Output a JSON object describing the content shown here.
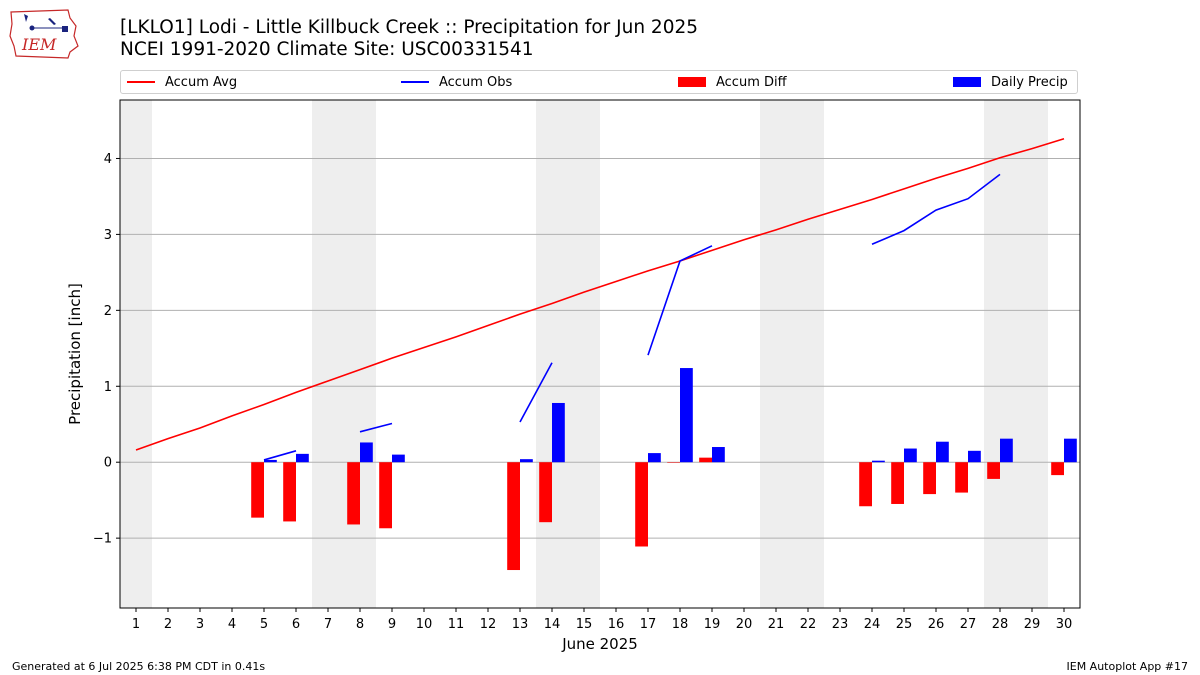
{
  "header": {
    "logo_text": "IEM",
    "title_line1": "[LKLO1] Lodi - Little Killbuck Creek :: Precipitation for Jun 2025",
    "title_line2": "NCEI 1991-2020 Climate Site: USC00331541"
  },
  "legend": [
    {
      "label": "Accum Avg",
      "color": "#ff0000",
      "kind": "line"
    },
    {
      "label": "Accum Obs",
      "color": "#0000ff",
      "kind": "line"
    },
    {
      "label": "Accum Diff",
      "color": "#ff0000",
      "kind": "bar"
    },
    {
      "label": "Daily Precip",
      "color": "#0000ff",
      "kind": "bar"
    }
  ],
  "footer": {
    "left": "Generated at 6 Jul 2025 6:38 PM CDT in 0.41s",
    "right": "IEM Autoplot App #17"
  },
  "chart_data": {
    "type": "bar",
    "xlabel": "June 2025",
    "ylabel": "Precipitation [inch]",
    "xlim": [
      0.5,
      30.5
    ],
    "ylim": [
      -1.92,
      4.77
    ],
    "yticks": [
      -1,
      0,
      1,
      2,
      3,
      4
    ],
    "ytick_labels": [
      "−1",
      "0",
      "1",
      "2",
      "3",
      "4"
    ],
    "x_tick_labels": [
      "1",
      "2",
      "3",
      "4",
      "5",
      "6",
      "7",
      "8",
      "9",
      "10",
      "11",
      "12",
      "13",
      "14",
      "15",
      "16",
      "17",
      "18",
      "19",
      "20",
      "21",
      "22",
      "23",
      "24",
      "25",
      "26",
      "27",
      "28",
      "29",
      "30"
    ],
    "grid": true,
    "weekend_shading": [
      [
        0.5,
        1.5
      ],
      [
        6.5,
        8.5
      ],
      [
        13.5,
        15.5
      ],
      [
        20.5,
        22.5
      ],
      [
        27.5,
        29.5
      ]
    ],
    "shading_color": "#eeeeee",
    "accum_avg": [
      0.16,
      0.31,
      0.45,
      0.61,
      0.76,
      0.92,
      1.07,
      1.22,
      1.37,
      1.51,
      1.65,
      1.8,
      1.95,
      2.09,
      2.24,
      2.38,
      2.52,
      2.65,
      2.79,
      2.93,
      3.06,
      3.2,
      3.33,
      3.46,
      3.6,
      3.74,
      3.87,
      4.01,
      4.13,
      4.26
    ],
    "accum_obs": [
      null,
      null,
      null,
      null,
      0.03,
      0.15,
      null,
      0.4,
      0.51,
      null,
      null,
      null,
      0.53,
      1.31,
      null,
      null,
      1.41,
      2.65,
      2.85,
      null,
      null,
      null,
      null,
      2.87,
      3.05,
      3.32,
      3.47,
      3.79,
      null,
      null
    ],
    "accum_diff": [
      null,
      null,
      null,
      null,
      -0.73,
      -0.78,
      null,
      -0.82,
      -0.87,
      null,
      null,
      null,
      -1.42,
      -0.79,
      null,
      null,
      -1.11,
      0.0,
      0.06,
      null,
      null,
      null,
      null,
      -0.58,
      -0.55,
      -0.42,
      -0.4,
      -0.22,
      null,
      -0.17
    ],
    "daily_precip": [
      null,
      null,
      null,
      null,
      0.03,
      0.11,
      null,
      0.26,
      0.1,
      null,
      null,
      null,
      0.04,
      0.78,
      null,
      null,
      0.12,
      1.24,
      0.2,
      null,
      null,
      null,
      null,
      0.02,
      0.18,
      0.27,
      0.15,
      0.31,
      null,
      0.31
    ],
    "colors": {
      "avg": "#ff0000",
      "obs": "#0000ff",
      "diff": "#ff0000",
      "daily": "#0000ff"
    }
  }
}
